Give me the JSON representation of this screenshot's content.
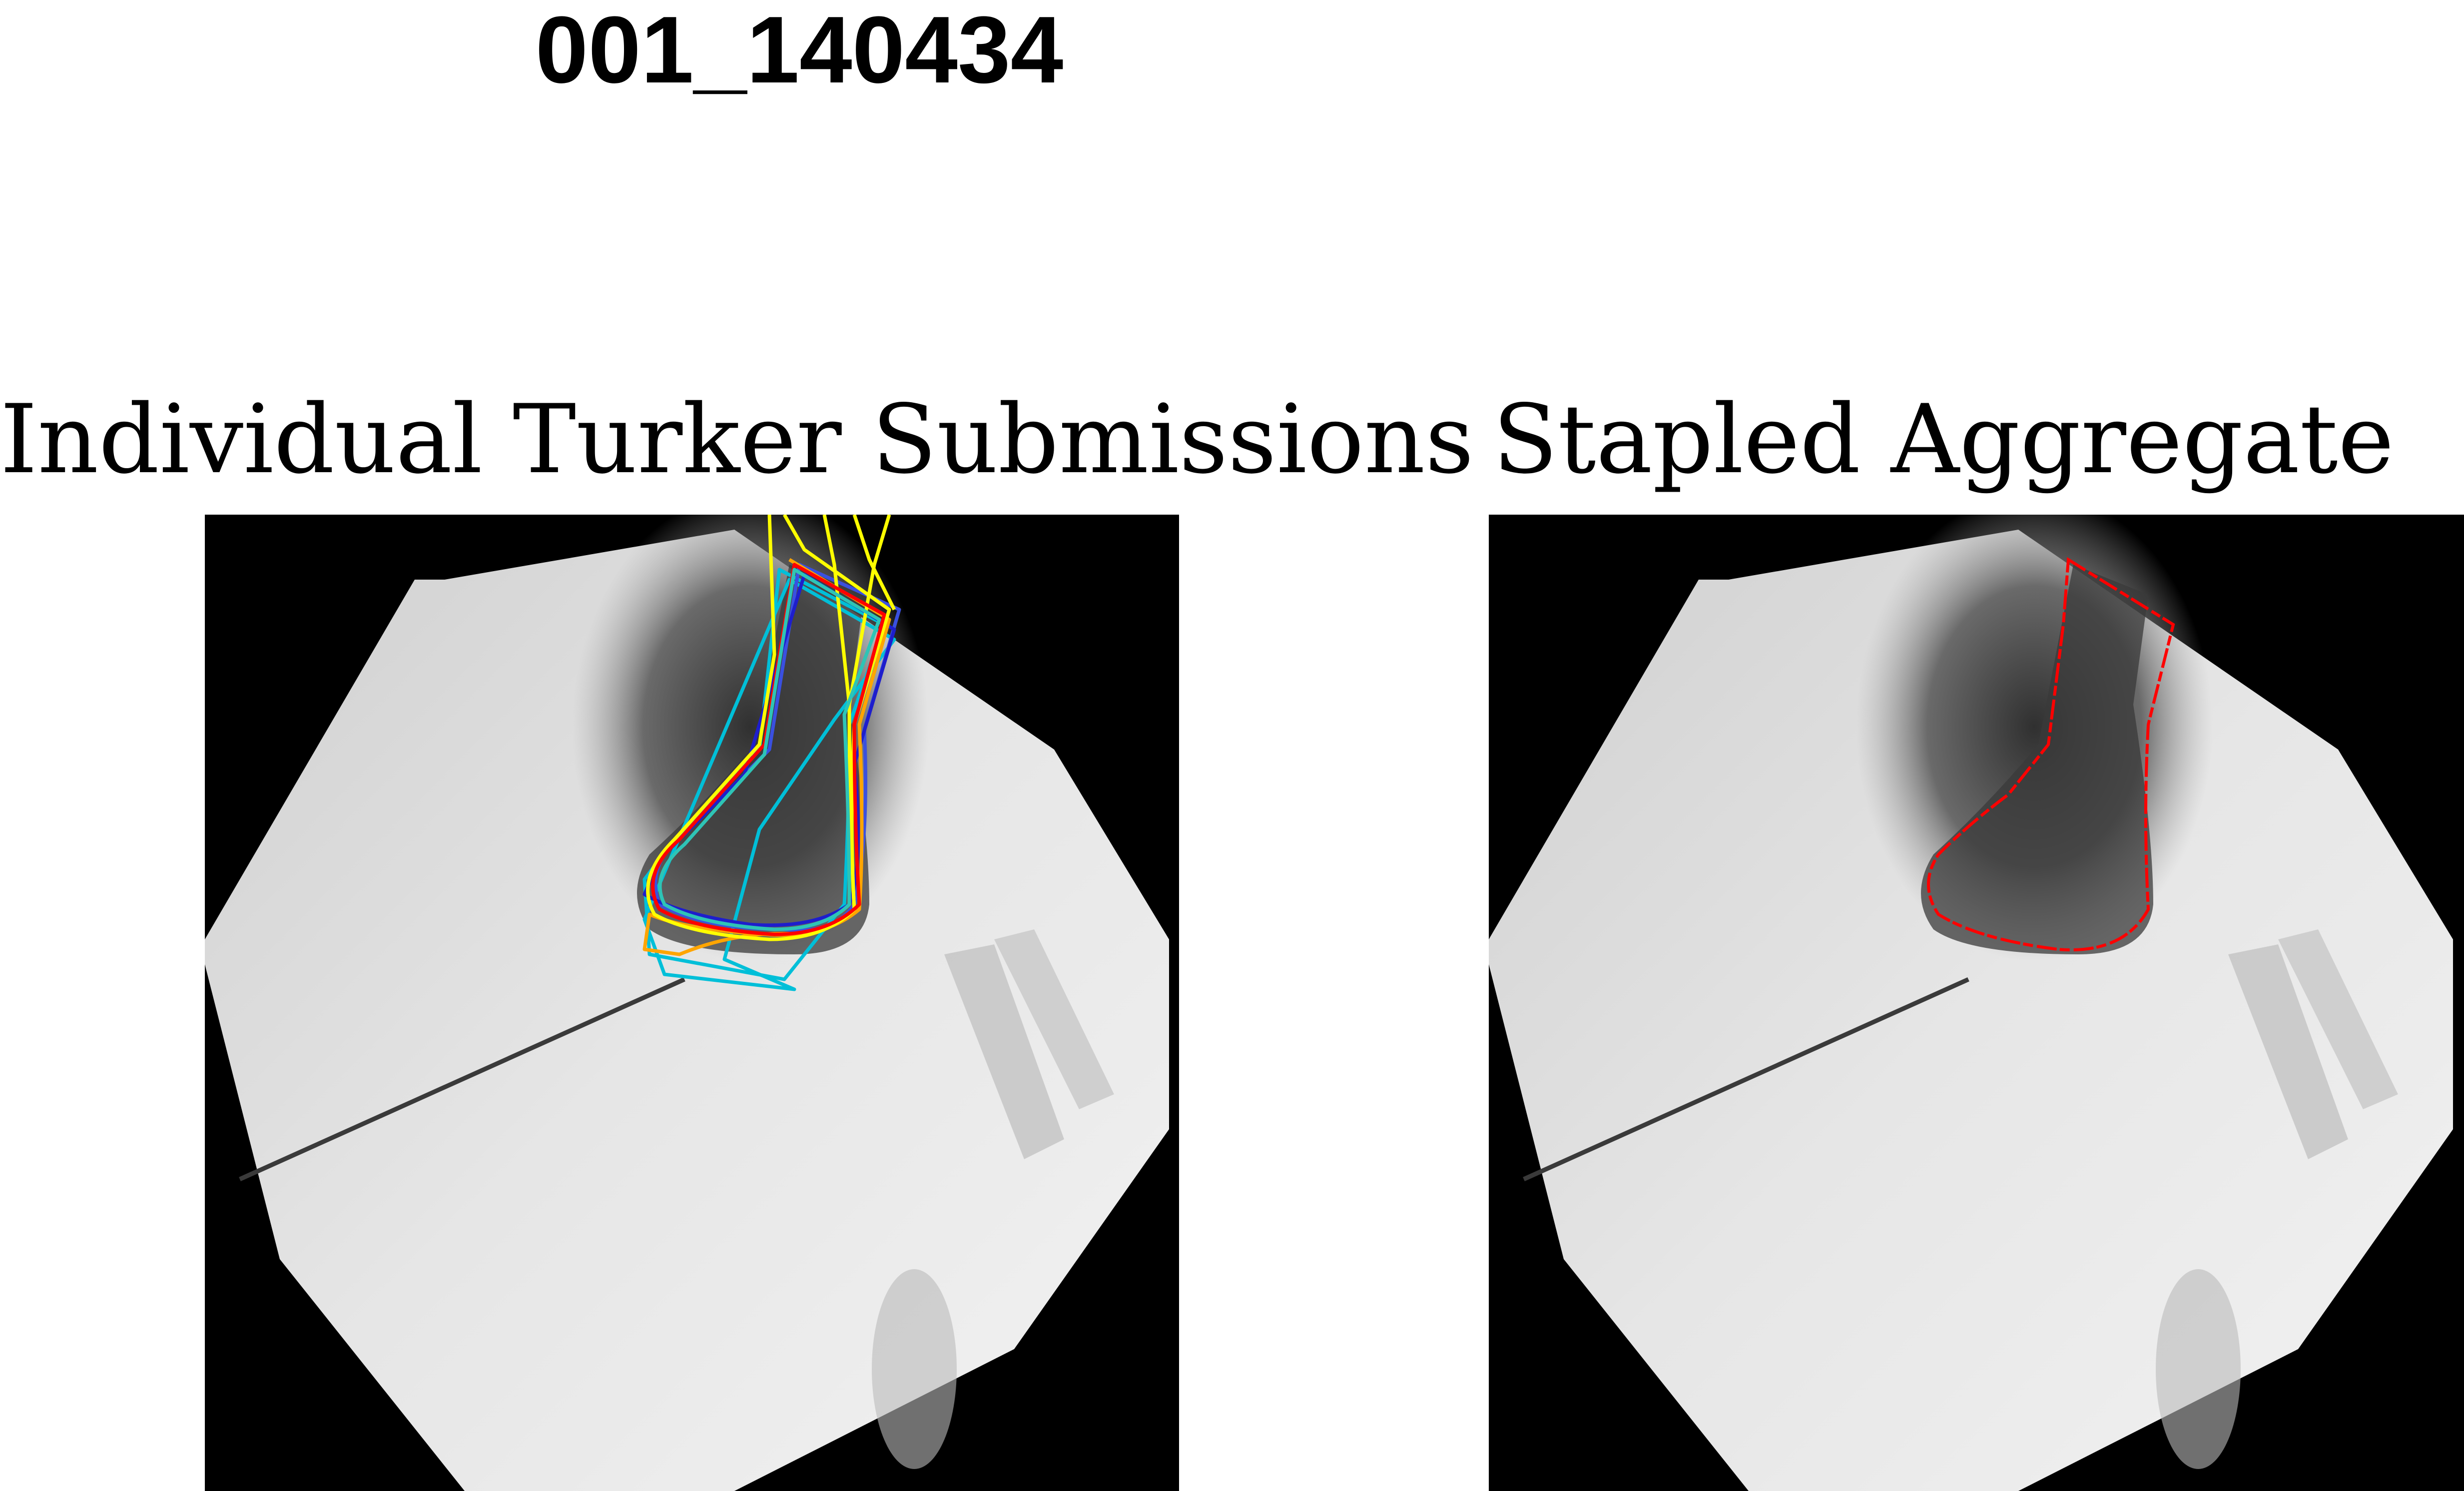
{
  "figure": {
    "title": "001_140434",
    "panels": [
      {
        "title": "Individual Turker Submissions",
        "image": "knee-xray-with-multiple-annotator-outlines",
        "outline_colors": [
          "#ff0000",
          "#ffff00",
          "#ffa500",
          "#00bfd8",
          "#3a50e0",
          "#1e1ecc",
          "#2ec4b6"
        ]
      },
      {
        "title": "Stapled Aggregate",
        "image": "knee-xray-with-aggregate-outline",
        "outline_colors": [
          "#ff0000"
        ]
      }
    ]
  }
}
